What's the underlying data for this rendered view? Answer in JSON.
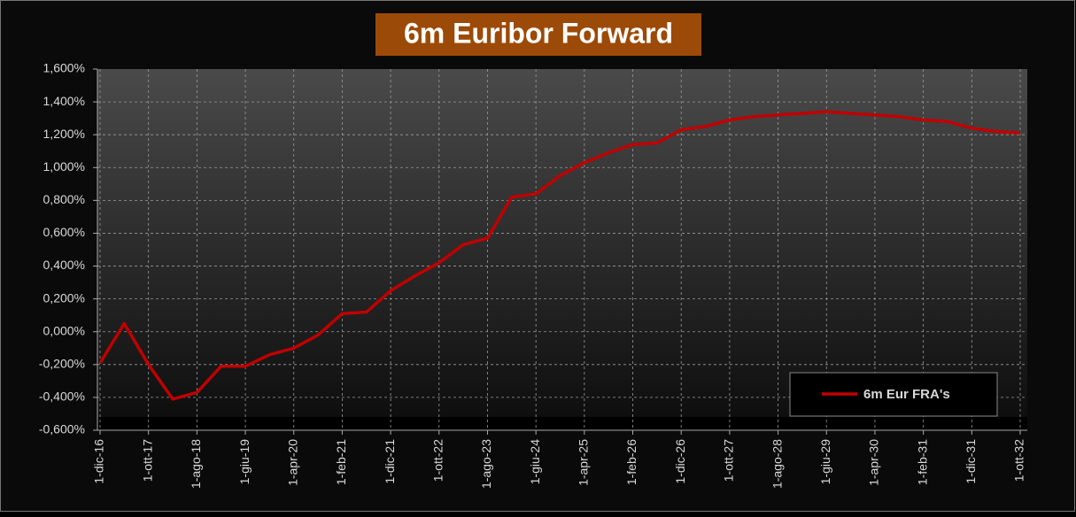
{
  "chart_data": {
    "type": "line",
    "title": "6m Euribor Forward",
    "categories": [
      "1-dic-16",
      null,
      "1-ott-17",
      null,
      "1-ago-18",
      null,
      "1-giu-19",
      null,
      "1-apr-20",
      null,
      "1-feb-21",
      null,
      "1-dic-21",
      null,
      "1-ott-22",
      null,
      "1-ago-23",
      null,
      "1-giu-24",
      null,
      "1-apr-25",
      null,
      "1-feb-26",
      null,
      "1-dic-26",
      null,
      "1-ott-27",
      null,
      "1-ago-28",
      null,
      "1-giu-29",
      null,
      "1-apr-30",
      null,
      "1-feb-31",
      null,
      "1-dic-31",
      null,
      "1-ott-32"
    ],
    "series": [
      {
        "name": "6m Eur FRA's",
        "color": "#c00000",
        "values": [
          -0.19,
          0.05,
          -0.2,
          -0.41,
          -0.37,
          -0.21,
          -0.21,
          -0.14,
          -0.1,
          -0.02,
          0.11,
          0.12,
          0.25,
          0.34,
          0.42,
          0.53,
          0.57,
          0.82,
          0.84,
          0.95,
          1.03,
          1.09,
          1.14,
          1.15,
          1.23,
          1.25,
          1.29,
          1.31,
          1.32,
          1.33,
          1.34,
          1.33,
          1.32,
          1.31,
          1.29,
          1.28,
          1.24,
          1.22,
          1.21
        ]
      }
    ],
    "ylim": [
      -0.6,
      1.6
    ],
    "yticks": [
      {
        "value": 1.6,
        "label": "1,600%"
      },
      {
        "value": 1.4,
        "label": "1,400%"
      },
      {
        "value": 1.2,
        "label": "1,200%"
      },
      {
        "value": 1.0,
        "label": "1,000%"
      },
      {
        "value": 0.8,
        "label": "0,800%"
      },
      {
        "value": 0.6,
        "label": "0,600%"
      },
      {
        "value": 0.4,
        "label": "0,400%"
      },
      {
        "value": 0.2,
        "label": "0,200%"
      },
      {
        "value": 0,
        "label": "0,000%"
      },
      {
        "value": -0.2,
        "label": "-0,200%"
      },
      {
        "value": -0.4,
        "label": "-0,400%"
      },
      {
        "value": -0.6,
        "label": "-0,600%"
      }
    ],
    "grid": true,
    "legend": "lower right"
  }
}
